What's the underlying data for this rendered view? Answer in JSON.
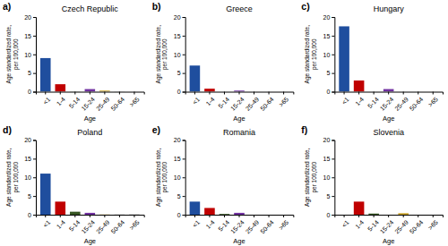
{
  "chart_data": [
    {
      "type": "bar",
      "title": "Czech Republic",
      "annotations": [
        "a)"
      ],
      "categories": [
        "<1",
        "1-4",
        "5-14",
        "15-24",
        "25-49",
        "50-64",
        ">65"
      ],
      "values": [
        9.0,
        2.0,
        0.05,
        0.7,
        0.3,
        0.05,
        0.0
      ],
      "colors": [
        "#1f4e9e",
        "#c00000",
        "#375623",
        "#7030a0",
        "#c9a227",
        "#808080",
        "#404040"
      ],
      "xlabel": "Age",
      "ylabel": "Age standardized rate,\nper 100,000",
      "ylim": [
        0,
        20
      ],
      "yticks": [
        0,
        5,
        10,
        15,
        20
      ],
      "grid": false
    },
    {
      "type": "bar",
      "title": "Greece",
      "annotations": [
        "b)"
      ],
      "categories": [
        "<1",
        "1-4",
        "5-14",
        "15-24",
        "25-49",
        "50-64",
        ">65"
      ],
      "values": [
        7.0,
        0.8,
        0.0,
        0.3,
        0.0,
        0.0,
        0.0
      ],
      "colors": [
        "#1f4e9e",
        "#c00000",
        "#375623",
        "#7030a0",
        "#c9a227",
        "#808080",
        "#404040"
      ],
      "xlabel": "Age",
      "ylabel": "Age standardized rate,\nper 100,000",
      "ylim": [
        0,
        20
      ],
      "yticks": [
        0,
        5,
        10,
        15,
        20
      ],
      "grid": false
    },
    {
      "type": "bar",
      "title": "Hungary",
      "annotations": [
        "c)"
      ],
      "categories": [
        "<1",
        "1-4",
        "5-14",
        "15-24",
        "25-49",
        "50-64",
        ">65"
      ],
      "values": [
        17.5,
        3.0,
        0.0,
        0.7,
        0.0,
        0.0,
        0.0
      ],
      "colors": [
        "#1f4e9e",
        "#c00000",
        "#375623",
        "#7030a0",
        "#c9a227",
        "#808080",
        "#404040"
      ],
      "xlabel": "Age",
      "ylabel": "Age standardized rate,\nper 100,000",
      "ylim": [
        0,
        20
      ],
      "yticks": [
        0,
        5,
        10,
        15,
        20
      ],
      "grid": false
    },
    {
      "type": "bar",
      "title": "Poland",
      "annotations": [
        "d)"
      ],
      "categories": [
        "<1",
        "1-4",
        "5-14",
        "15-24",
        "25-49",
        "50-64",
        ">65"
      ],
      "values": [
        11.0,
        3.5,
        0.8,
        0.5,
        0.05,
        0.05,
        0.05
      ],
      "colors": [
        "#1f4e9e",
        "#c00000",
        "#375623",
        "#7030a0",
        "#c9a227",
        "#808080",
        "#404040"
      ],
      "xlabel": "Age",
      "ylabel": "Age standardized rate,\nper 100,000",
      "ylim": [
        0,
        20
      ],
      "yticks": [
        0,
        5,
        10,
        15,
        20
      ],
      "grid": false
    },
    {
      "type": "bar",
      "title": "Romania",
      "annotations": [
        "e)"
      ],
      "categories": [
        "<1",
        "1-4",
        "5-14",
        "15-24",
        "25-49",
        "50-64",
        ">65"
      ],
      "values": [
        3.5,
        1.8,
        0.2,
        0.5,
        0.0,
        0.0,
        0.0
      ],
      "colors": [
        "#1f4e9e",
        "#c00000",
        "#375623",
        "#7030a0",
        "#c9a227",
        "#808080",
        "#404040"
      ],
      "xlabel": "Age",
      "ylabel": "Age standardized rate,\nper 100,000",
      "ylim": [
        0,
        20
      ],
      "yticks": [
        0,
        5,
        10,
        15,
        20
      ],
      "grid": false
    },
    {
      "type": "bar",
      "title": "Slovenia",
      "annotations": [
        "f)"
      ],
      "categories": [
        "<1",
        "1-4",
        "5-14",
        "15-24",
        "25-49",
        "50-64",
        ">65"
      ],
      "values": [
        0.0,
        3.5,
        0.3,
        0.0,
        0.4,
        0.0,
        0.0
      ],
      "colors": [
        "#1f4e9e",
        "#c00000",
        "#375623",
        "#7030a0",
        "#c9a227",
        "#808080",
        "#404040"
      ],
      "xlabel": "Age",
      "ylabel": "Age standardized rate,\nper 100,000",
      "ylim": [
        0,
        20
      ],
      "yticks": [
        0,
        5,
        10,
        15,
        20
      ],
      "grid": false
    }
  ]
}
